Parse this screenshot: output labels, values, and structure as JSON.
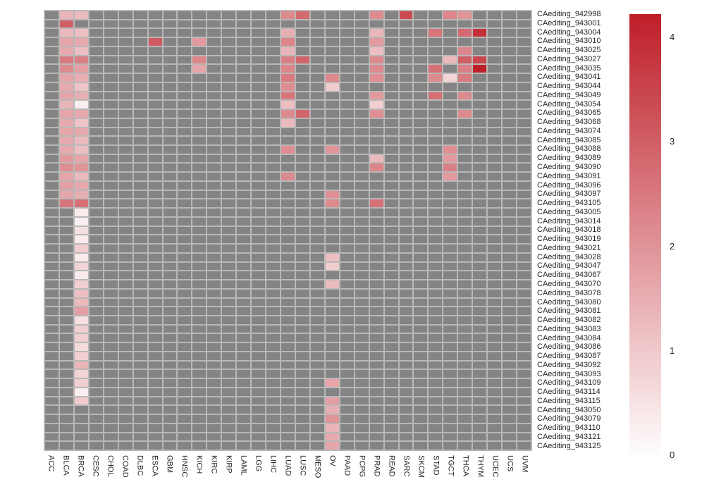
{
  "chart_data": {
    "type": "heatmap",
    "title": "",
    "xlabel": "",
    "ylabel": "",
    "legend_position": "right",
    "grid": "off",
    "columns": [
      "ACC",
      "BLCA",
      "BRCA",
      "CESC",
      "CHOL",
      "COAD",
      "DLBC",
      "ESCA",
      "GBM",
      "HNSC",
      "KICH",
      "KIRC",
      "KIRP",
      "LAML",
      "LGG",
      "LIHC",
      "LUAD",
      "LUSC",
      "MESO",
      "OV",
      "PAAD",
      "PCPG",
      "PRAD",
      "READ",
      "SARC",
      "SKCM",
      "STAD",
      "TGCT",
      "THCA",
      "THYM",
      "UCEC",
      "UCS",
      "UVM"
    ],
    "rows": [
      "CAediting_942998",
      "CAediting_943001",
      "CAediting_943004",
      "CAediting_943010",
      "CAediting_943025",
      "CAediting_943027",
      "CAediting_943035",
      "CAediting_943041",
      "CAediting_943044",
      "CAediting_943049",
      "CAediting_943054",
      "CAediting_943065",
      "CAediting_943068",
      "CAediting_943074",
      "CAediting_943085",
      "CAediting_943088",
      "CAediting_943089",
      "CAediting_943090",
      "CAediting_943091",
      "CAediting_943096",
      "CAediting_943097",
      "CAediting_943105",
      "CAediting_943005",
      "CAediting_943014",
      "CAediting_943018",
      "CAediting_943019",
      "CAediting_943021",
      "CAediting_943028",
      "CAediting_943047",
      "CAediting_943067",
      "CAediting_943070",
      "CAediting_943078",
      "CAediting_943080",
      "CAediting_943081",
      "CAediting_943082",
      "CAediting_943083",
      "CAediting_943084",
      "CAediting_943086",
      "CAediting_943087",
      "CAediting_943092",
      "CAediting_943093",
      "CAediting_943109",
      "CAediting_943114",
      "CAediting_943115",
      "CAediting_943050",
      "CAediting_943079",
      "CAediting_943110",
      "CAediting_943121",
      "CAediting_943125"
    ],
    "cells": {
      "CAediting_942998": {
        "BLCA": 1.4,
        "BRCA": 1.3,
        "LUAD": 2.2,
        "LUSC": 2.8,
        "PRAD": 2.2,
        "SARC": 3.4,
        "TGCT": 2.3,
        "THCA": 2.0
      },
      "CAediting_943001": {
        "BLCA": 3.0
      },
      "CAediting_943004": {
        "BLCA": 1.3,
        "BRCA": 1.2,
        "LUAD": 1.5,
        "PRAD": 1.4,
        "STAD": 2.6,
        "THCA": 2.8,
        "THYM": 3.9
      },
      "CAediting_943010": {
        "BLCA": 1.7,
        "BRCA": 1.6,
        "ESCA": 3.1,
        "KICH": 1.9,
        "LUAD": 2.3,
        "PRAD": 1.9
      },
      "CAediting_943025": {
        "BLCA": 1.6,
        "BRCA": 1.2,
        "LUAD": 1.4,
        "PRAD": 1.2,
        "THCA": 2.3
      },
      "CAediting_943027": {
        "BLCA": 2.5,
        "BRCA": 2.4,
        "KICH": 2.3,
        "LUAD": 2.4,
        "LUSC": 2.9,
        "PRAD": 2.2,
        "TGCT": 1.3,
        "THCA": 3.0,
        "THYM": 3.5
      },
      "CAediting_943035": {
        "BLCA": 2.2,
        "BRCA": 1.8,
        "KICH": 1.7,
        "LUAD": 2.3,
        "PRAD": 2.2,
        "STAD": 2.7,
        "THCA": 2.4,
        "THYM": 4.2
      },
      "CAediting_943041": {
        "BLCA": 1.7,
        "BRCA": 1.5,
        "LUAD": 2.5,
        "OV": 2.2,
        "PRAD": 2.1,
        "STAD": 2.2,
        "TGCT": 0.8,
        "THCA": 2.5
      },
      "CAediting_943044": {
        "BLCA": 1.6,
        "BRCA": 1.1,
        "LUAD": 2.1,
        "OV": 1.0
      },
      "CAediting_943049": {
        "BLCA": 1.7,
        "BRCA": 1.5,
        "LUAD": 2.6,
        "PRAD": 1.9,
        "STAD": 2.7,
        "THCA": 2.2
      },
      "CAediting_943054": {
        "BLCA": 1.4,
        "BRCA": 0.3,
        "LUAD": 1.2,
        "PRAD": 0.9
      },
      "CAediting_943065": {
        "BLCA": 1.7,
        "BRCA": 1.6,
        "LUAD": 2.2,
        "LUSC": 2.9,
        "PRAD": 2.1,
        "THCA": 2.2
      },
      "CAediting_943068": {
        "BLCA": 1.6,
        "BRCA": 1.1,
        "LUAD": 1.3
      },
      "CAediting_943074": {
        "BLCA": 1.7,
        "BRCA": 1.6
      },
      "CAediting_943085": {
        "BLCA": 1.6,
        "BRCA": 1.3
      },
      "CAediting_943088": {
        "BLCA": 1.6,
        "BRCA": 1.2,
        "LUAD": 2.1,
        "OV": 2.0,
        "TGCT": 2.1
      },
      "CAediting_943089": {
        "BLCA": 1.9,
        "BRCA": 1.7,
        "PRAD": 1.3,
        "TGCT": 1.9
      },
      "CAediting_943090": {
        "BLCA": 2.1,
        "BRCA": 2.0,
        "PRAD": 2.3,
        "TGCT": 2.4
      },
      "CAediting_943091": {
        "BLCA": 1.7,
        "BRCA": 1.3,
        "LUAD": 2.2,
        "TGCT": 1.9
      },
      "CAediting_943096": {
        "BLCA": 1.8,
        "BRCA": 1.6
      },
      "CAediting_943097": {
        "BLCA": 1.7,
        "BRCA": 1.5,
        "OV": 2.1
      },
      "CAediting_943105": {
        "BLCA": 2.6,
        "BRCA": 2.7,
        "OV": 2.2,
        "PRAD": 2.7
      },
      "CAediting_943005": {
        "BRCA": 0.4
      },
      "CAediting_943014": {
        "BRCA": 0.3
      },
      "CAediting_943018": {
        "BRCA": 0.6
      },
      "CAediting_943019": {
        "BRCA": 0.4
      },
      "CAediting_943021": {
        "BRCA": 0.9
      },
      "CAediting_943028": {
        "BRCA": 0.4,
        "OV": 1.2
      },
      "CAediting_943047": {
        "BRCA": 0.8,
        "OV": 0.9
      },
      "CAediting_943067": {
        "BRCA": 0.4
      },
      "CAediting_943070": {
        "BRCA": 0.9,
        "OV": 1.3
      },
      "CAediting_943078": {
        "BRCA": 1.2
      },
      "CAediting_943080": {
        "BRCA": 1.3
      },
      "CAediting_943081": {
        "BRCA": 1.8
      },
      "CAediting_943082": {
        "BRCA": 0.6
      },
      "CAediting_943083": {
        "BRCA": 0.9
      },
      "CAediting_943084": {
        "BRCA": 0.9
      },
      "CAediting_943086": {
        "BRCA": 0.7
      },
      "CAediting_943087": {
        "BRCA": 0.9
      },
      "CAediting_943092": {
        "BRCA": 1.4
      },
      "CAediting_943093": {
        "BRCA": 0.8
      },
      "CAediting_943109": {
        "BRCA": 0.9,
        "OV": 1.7
      },
      "CAediting_943114": {
        "BRCA": 0.3
      },
      "CAediting_943115": {
        "BRCA": 1.0,
        "OV": 1.8
      },
      "CAediting_943050": {
        "OV": 1.5
      },
      "CAediting_943079": {
        "OV": 2.0
      },
      "CAediting_943110": {
        "OV": 1.4
      },
      "CAediting_943121": {
        "OV": 1.6
      },
      "CAediting_943125": {
        "OV": 1.7
      }
    },
    "scale": {
      "domain": [
        0,
        4.23
      ],
      "ticks": [
        "0",
        "1",
        "2",
        "3",
        "4"
      ],
      "min_color": "#ffffff",
      "max_color": "#be1e28",
      "na_color": "#848484",
      "gap_color": "#b8b8b8"
    }
  }
}
